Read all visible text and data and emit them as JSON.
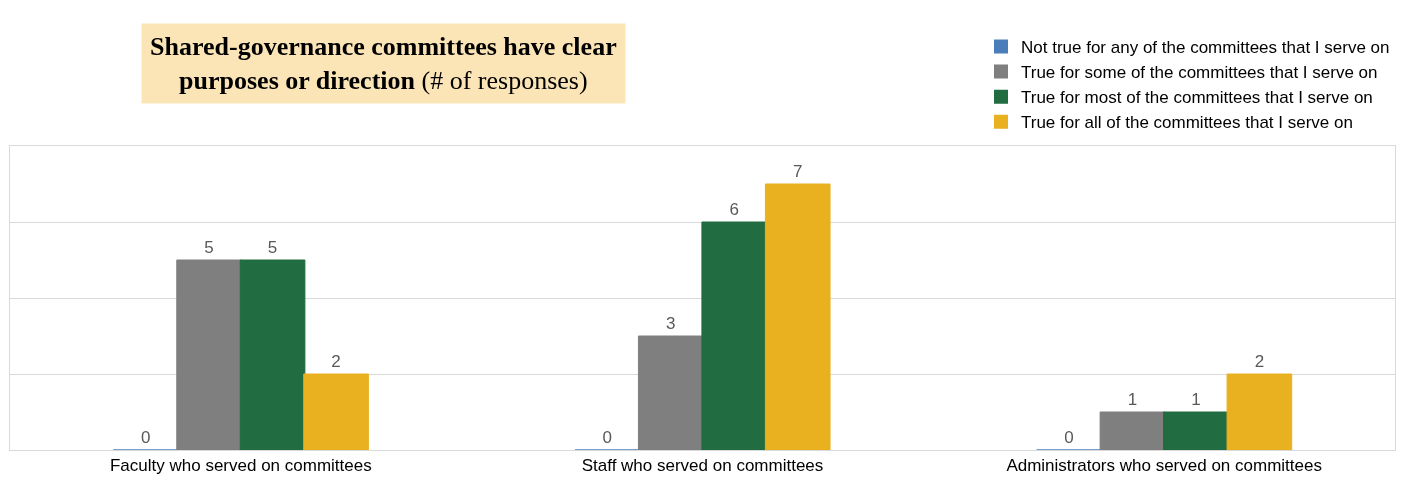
{
  "chart_data": {
    "type": "bar",
    "title": "Shared-governance committees have clear purposes or direction",
    "subtitle": "(# of responses)",
    "categories": [
      "Faculty who served on committees",
      "Staff who served on committees",
      "Administrators who served on committees"
    ],
    "series": [
      {
        "name": "Not true for any of the committees that I serve on",
        "color": "#4a7ebb",
        "values": [
          0,
          0,
          0
        ]
      },
      {
        "name": "True for some of the committees that I serve on",
        "color": "#7f7f7f",
        "values": [
          5,
          3,
          1
        ]
      },
      {
        "name": "True for most of the committees that I serve on",
        "color": "#216c41",
        "values": [
          5,
          6,
          1
        ]
      },
      {
        "name": "True for all of the committees that I serve on",
        "color": "#e9b01f",
        "values": [
          2,
          7,
          2
        ]
      }
    ],
    "ylim": [
      0,
      8
    ],
    "yticks": [
      {
        "value": 0,
        "label": null
      },
      {
        "value": 2,
        "label": null
      },
      {
        "value": 4,
        "label": null
      },
      {
        "value": 6,
        "label": null
      },
      {
        "value": 8,
        "label": null
      }
    ],
    "tick_labels": "x",
    "grid": "y",
    "legend": "top right",
    "data_labels": true
  }
}
